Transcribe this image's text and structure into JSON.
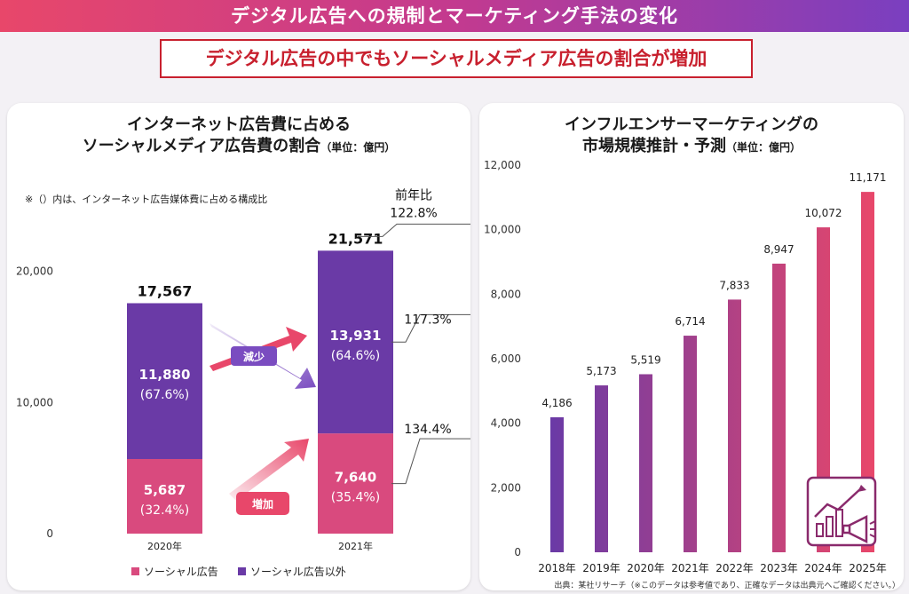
{
  "header": {
    "banner": "デジタル広告への規制とマーケティング手法の変化",
    "subtitle": "デジタル広告の中でもソーシャルメディア広告の割合が増加"
  },
  "left_panel": {
    "title_line1": "インターネット広告費に占める",
    "title_line2": "ソーシャルメディア広告費の割合",
    "unit": "（単位：億円）",
    "note": "※（）内は、インターネット広告媒体費に占める構成比",
    "yoy_label": "前年比",
    "arrow_decrease": "減少",
    "arrow_increase": "増加"
  },
  "right_panel": {
    "title_line1": "インフルエンサーマーケティングの",
    "title_line2": "市場規模推計・予測",
    "unit": "（単位：億円）",
    "source": "出典：某社リサーチ（※このデータは参考値であり、正確なデータは出典元へご確認ください。）"
  },
  "colors": {
    "social": "#d94a7e",
    "other": "#6a3aa6",
    "bar_start": "#6a3aa6",
    "bar_end": "#e8476a",
    "accent_red": "#c8202e"
  },
  "chart_data": [
    {
      "type": "bar",
      "stacked": true,
      "categories": [
        "2020年",
        "2021年"
      ],
      "series": [
        {
          "name": "ソーシャル広告",
          "values": [
            5687,
            7640
          ],
          "share_labels": [
            "(32.4%)",
            "(35.4%)"
          ],
          "value_labels": [
            "5,687",
            "7,640"
          ]
        },
        {
          "name": "ソーシャル広告以外",
          "values": [
            11880,
            13931
          ],
          "share_labels": [
            "(67.6%)",
            "(64.6%)"
          ],
          "value_labels": [
            "11,880",
            "13,931"
          ]
        }
      ],
      "totals": [
        17567,
        21571
      ],
      "total_labels": [
        "17,567",
        "21,571"
      ],
      "yoy": {
        "total": "122.8%",
        "other": "117.3%",
        "social": "134.4%"
      },
      "yticks": [
        0,
        10000,
        20000
      ],
      "ytick_labels": [
        "0",
        "10,000",
        "20,000"
      ],
      "ylim": [
        0,
        22000
      ],
      "legend": "bottom"
    },
    {
      "type": "bar",
      "categories": [
        "2018年",
        "2019年",
        "2020年",
        "2021年",
        "2022年",
        "2023年",
        "2024年",
        "2025年"
      ],
      "values": [
        4186,
        5173,
        5519,
        6714,
        7833,
        8947,
        10072,
        11171
      ],
      "value_labels": [
        "4,186",
        "5,173",
        "5,519",
        "6,714",
        "7,833",
        "8,947",
        "10,072",
        "11,171"
      ],
      "yticks": [
        0,
        2000,
        4000,
        6000,
        8000,
        10000,
        12000
      ],
      "ytick_labels": [
        "0",
        "2,000",
        "4,000",
        "6,000",
        "8,000",
        "10,000",
        "12,000"
      ],
      "ylim": [
        0,
        12000
      ]
    }
  ]
}
